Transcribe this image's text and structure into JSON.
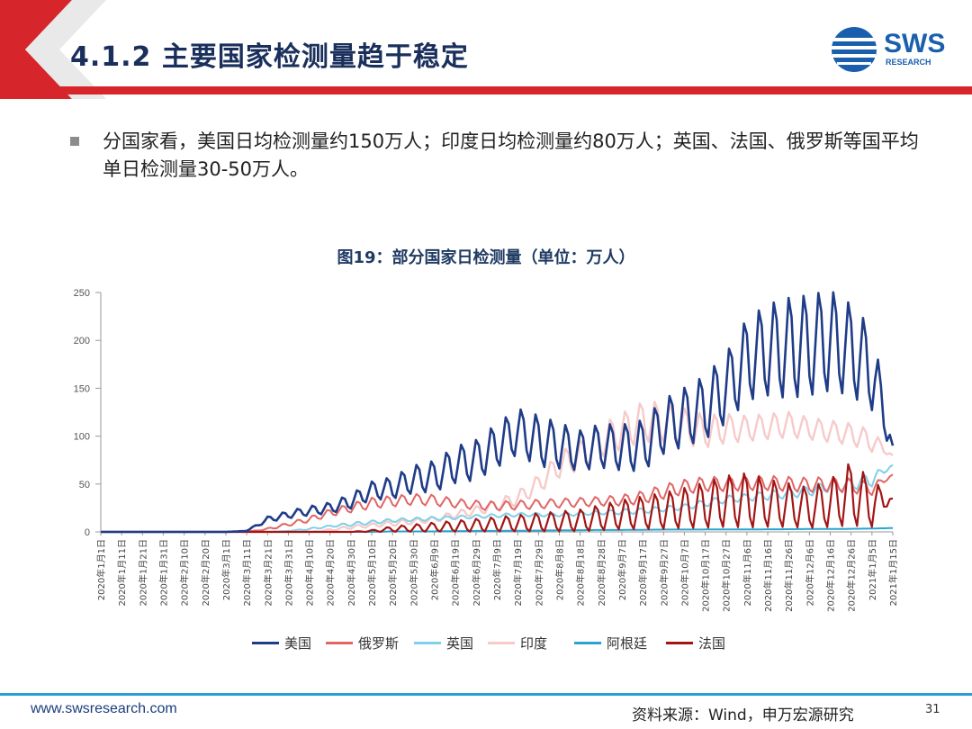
{
  "header": {
    "title": "4.1.2 主要国家检测量趋于稳定",
    "logo_text": "SWS",
    "logo_sub": "RESEARCH",
    "accent_red": "#d7262b",
    "accent_blue": "#1a5fae"
  },
  "bullet": {
    "text": "分国家看，美国日均检测量约150万人；印度日均检测量约80万人；英国、法国、俄罗斯等国平均单日检测量30-50万人。"
  },
  "chart_data": {
    "type": "line",
    "title": "图19：部分国家日检测量（单位：万人）",
    "xlabel": "",
    "ylabel": "",
    "ylim": [
      0,
      250
    ],
    "yticks": [
      "0",
      "50",
      "100",
      "150",
      "200",
      "250"
    ],
    "grid": false,
    "legend_position": "bottom",
    "categories": [
      "2020年1月1日",
      "2020年1月11日",
      "2020年1月21日",
      "2020年1月31日",
      "2020年2月10日",
      "2020年2月20日",
      "2020年3月1日",
      "2020年3月11日",
      "2020年3月21日",
      "2020年3月31日",
      "2020年4月10日",
      "2020年4月20日",
      "2020年4月30日",
      "2020年5月10日",
      "2020年5月20日",
      "2020年5月30日",
      "2020年6月9日",
      "2020年6月19日",
      "2020年6月29日",
      "2020年7月9日",
      "2020年7月19日",
      "2020年7月29日",
      "2020年8月8日",
      "2020年8月18日",
      "2020年8月28日",
      "2020年9月7日",
      "2020年9月17日",
      "2020年9月27日",
      "2020年10月7日",
      "2020年10月17日",
      "2020年10月27日",
      "2020年11月6日",
      "2020年11月16日",
      "2020年11月26日",
      "2020年12月6日",
      "2020年12月16日",
      "2020年12月26日",
      "2021年1月5日",
      "2021年1月15日"
    ],
    "series": [
      {
        "name": "美国",
        "color": "#1f3c88",
        "width": 2.6,
        "values": [
          0,
          0,
          0,
          0,
          0,
          0,
          0,
          1,
          13,
          18,
          22,
          25,
          32,
          43,
          46,
          55,
          58,
          70,
          75,
          90,
          105,
          95,
          90,
          85,
          90,
          88,
          90,
          110,
          120,
          130,
          150,
          180,
          190,
          192,
          195,
          200,
          190,
          170,
          90
        ],
        "amplitude": [
          0,
          0,
          0,
          0,
          0,
          0,
          0,
          0,
          3,
          4,
          5,
          6,
          8,
          10,
          12,
          15,
          17,
          20,
          22,
          24,
          25,
          28,
          25,
          22,
          24,
          25,
          28,
          30,
          32,
          35,
          38,
          45,
          50,
          55,
          55,
          55,
          50,
          45,
          8
        ]
      },
      {
        "name": "俄罗斯",
        "color": "#e06666",
        "width": 2,
        "values": [
          0,
          0,
          0,
          0,
          0,
          0,
          0,
          0,
          3,
          8,
          13,
          20,
          25,
          30,
          32,
          34,
          33,
          30,
          28,
          27,
          28,
          29,
          30,
          31,
          32,
          33,
          36,
          42,
          47,
          50,
          50,
          51,
          51,
          50,
          49,
          50,
          48,
          45,
          60
        ],
        "amplitude": [
          0,
          0,
          0,
          0,
          0,
          0,
          0,
          0,
          1,
          2,
          3,
          4,
          5,
          6,
          6,
          6,
          6,
          5,
          5,
          5,
          5,
          5,
          5,
          5,
          5,
          6,
          7,
          8,
          8,
          8,
          8,
          8,
          8,
          8,
          8,
          8,
          8,
          7,
          0
        ]
      },
      {
        "name": "英国",
        "color": "#7fd0ea",
        "width": 2,
        "values": [
          0,
          0,
          0,
          0,
          0,
          0,
          0,
          0,
          0,
          1,
          3,
          6,
          8,
          10,
          12,
          13,
          14,
          15,
          16,
          17,
          18,
          18,
          18,
          19,
          20,
          21,
          22,
          24,
          26,
          30,
          34,
          36,
          38,
          40,
          43,
          48,
          50,
          55,
          70
        ],
        "amplitude": [
          0,
          0,
          0,
          0,
          0,
          0,
          0,
          0,
          0,
          0,
          1,
          1,
          2,
          2,
          2,
          2,
          2,
          2,
          2,
          2,
          2,
          2,
          2,
          2,
          2,
          3,
          3,
          3,
          3,
          4,
          4,
          4,
          5,
          5,
          6,
          6,
          7,
          8,
          0
        ]
      },
      {
        "name": "印度",
        "color": "#f7caca",
        "width": 2.4,
        "values": [
          0,
          0,
          0,
          0,
          0,
          0,
          0,
          0,
          0,
          0,
          0,
          2,
          5,
          7,
          9,
          11,
          13,
          18,
          22,
          28,
          35,
          50,
          70,
          80,
          95,
          105,
          115,
          115,
          110,
          105,
          108,
          108,
          110,
          112,
          108,
          105,
          102,
          95,
          80
        ],
        "amplitude": [
          0,
          0,
          0,
          0,
          0,
          0,
          0,
          0,
          0,
          0,
          0,
          1,
          2,
          2,
          3,
          3,
          3,
          4,
          5,
          6,
          8,
          10,
          14,
          16,
          18,
          20,
          22,
          22,
          20,
          18,
          16,
          14,
          14,
          14,
          12,
          12,
          12,
          12,
          0
        ]
      },
      {
        "name": "阿根廷",
        "color": "#29a3cf",
        "width": 2,
        "values": [
          0,
          0,
          0,
          0,
          0,
          0,
          0,
          0,
          0,
          0,
          0,
          0,
          0,
          0,
          0.5,
          0.5,
          0.5,
          0.8,
          1,
          1,
          1.2,
          1.4,
          1.6,
          1.8,
          2,
          2,
          2.2,
          2.4,
          2.4,
          2.5,
          2.5,
          2.6,
          2.7,
          2.8,
          3,
          3,
          3.2,
          3.5,
          4
        ],
        "amplitude": [
          0,
          0,
          0,
          0,
          0,
          0,
          0,
          0,
          0,
          0,
          0,
          0,
          0,
          0,
          0,
          0,
          0,
          0,
          0,
          0,
          0,
          0,
          0,
          0,
          0,
          0,
          0,
          0,
          0,
          0,
          0,
          0,
          0,
          0,
          0,
          0,
          0,
          0,
          0
        ]
      },
      {
        "name": "法国",
        "color": "#a31515",
        "width": 2.2,
        "values": [
          0,
          0,
          0,
          0,
          0,
          0,
          0,
          0,
          0,
          0,
          0,
          0,
          0,
          1,
          3,
          4,
          5,
          6,
          7,
          8,
          9,
          10,
          11,
          12,
          15,
          18,
          20,
          22,
          25,
          28,
          32,
          33,
          30,
          28,
          25,
          30,
          40,
          30,
          35
        ],
        "amplitude": [
          0,
          0,
          0,
          0,
          0,
          0,
          0,
          0,
          0,
          0,
          0,
          0,
          0,
          1,
          3,
          4,
          5,
          6,
          7,
          8,
          9,
          10,
          11,
          12,
          14,
          16,
          18,
          20,
          22,
          25,
          28,
          30,
          26,
          24,
          22,
          26,
          35,
          26,
          0
        ]
      }
    ]
  }
}
